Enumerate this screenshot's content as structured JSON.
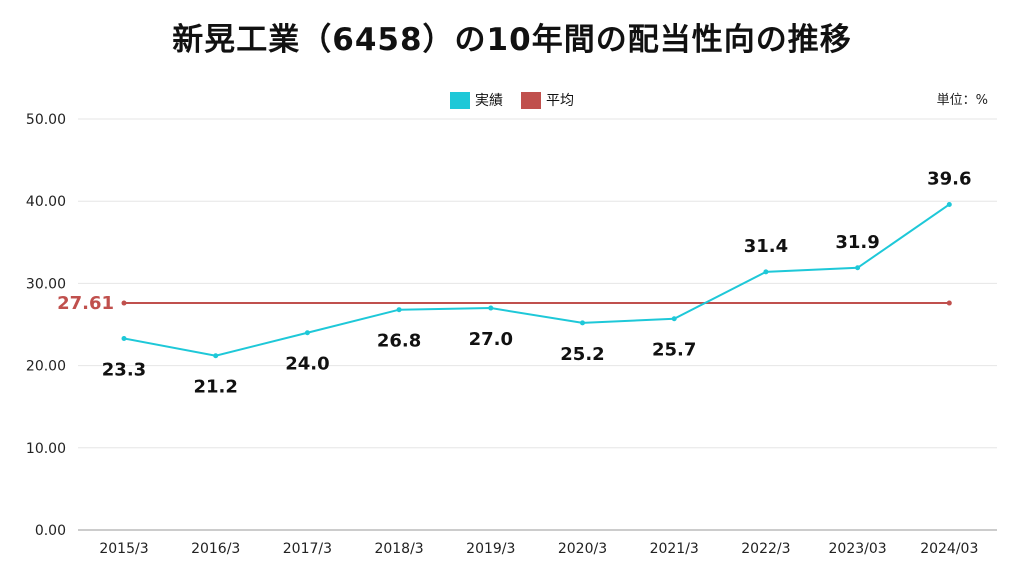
{
  "title": "新晃工業（6458）の10年間の配当性向の推移",
  "unit": "単位：%",
  "colors": {
    "series": "#1ec8d8",
    "average": "#c0504d"
  },
  "chart_data": {
    "type": "line",
    "categories": [
      "2015/3",
      "2016/3",
      "2017/3",
      "2018/3",
      "2019/3",
      "2020/3",
      "2021/3",
      "2022/3",
      "2023/03",
      "2024/03"
    ],
    "series": [
      {
        "name": "実績",
        "values": [
          23.3,
          21.2,
          24.0,
          26.8,
          27.0,
          25.2,
          25.7,
          31.4,
          31.9,
          39.6
        ]
      },
      {
        "name": "平均",
        "values": [
          27.61,
          27.61,
          27.61,
          27.61,
          27.61,
          27.61,
          27.61,
          27.61,
          27.61,
          27.61
        ]
      }
    ],
    "data_labels": [
      "23.3",
      "21.2",
      "24.0",
      "26.8",
      "27.0",
      "25.2",
      "25.7",
      "31.4",
      "31.9",
      "39.6"
    ],
    "average_label": "27.61",
    "y_ticks": [
      "0.00",
      "10.00",
      "20.00",
      "30.00",
      "40.00",
      "50.00"
    ],
    "ylim": [
      0,
      50
    ],
    "grid": true,
    "legend_position": "top-center"
  }
}
